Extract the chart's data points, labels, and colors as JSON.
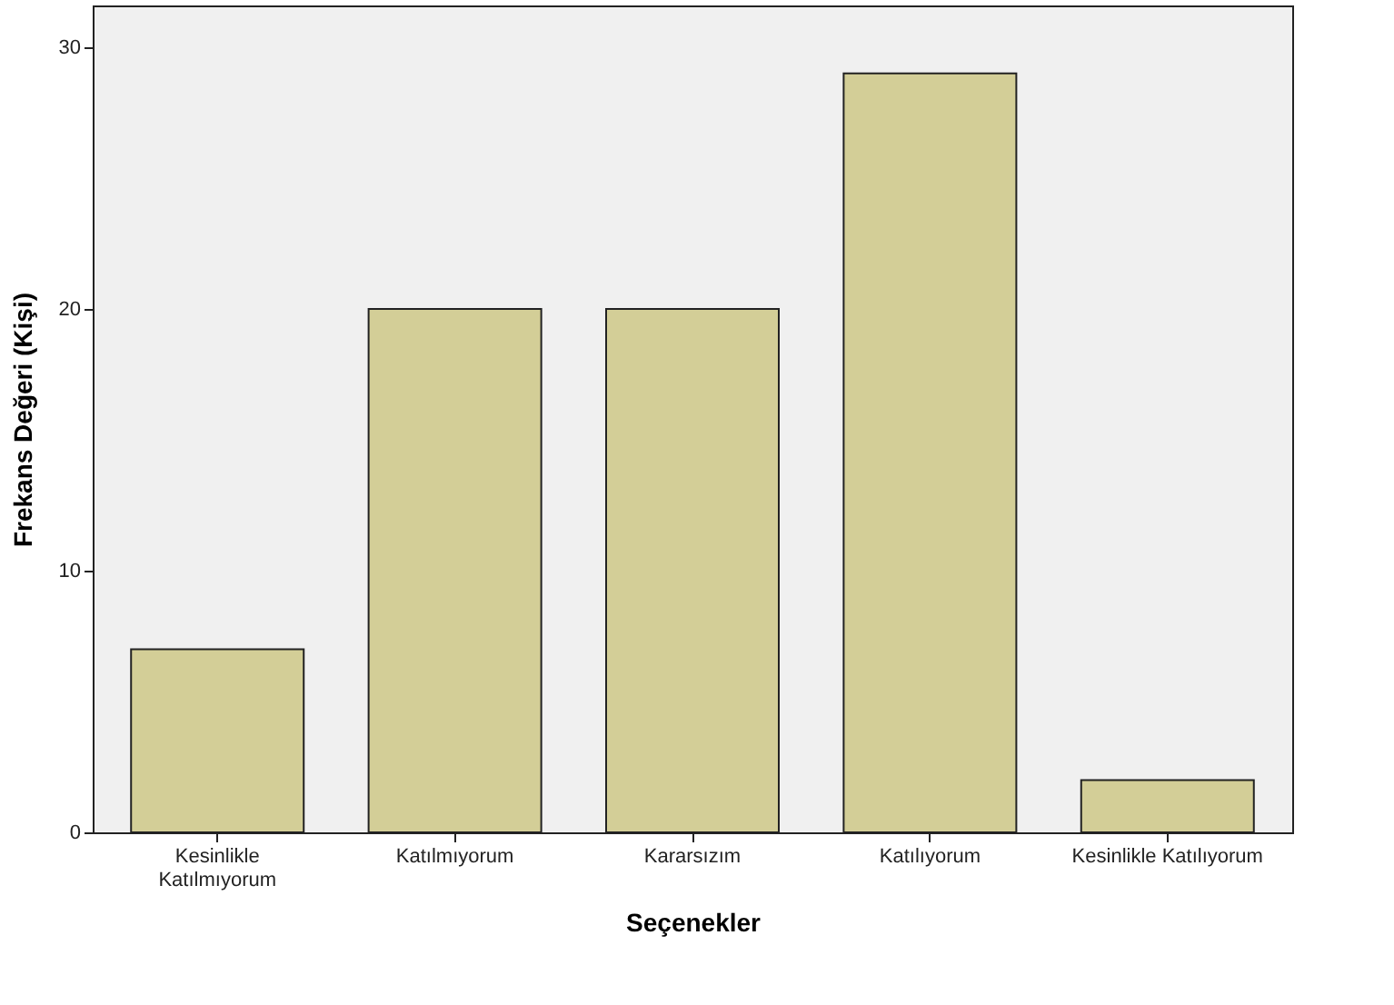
{
  "chart_data": {
    "type": "bar",
    "xlabel": "Seçenekler",
    "ylabel": "Frekans Değeri (Kişi)",
    "categories": [
      "Kesinlikle Katılmıyorum",
      "Katılmıyorum",
      "Kararsızım",
      "Katılıyorum",
      "Kesinlikle Katılıyorum"
    ],
    "values": [
      7,
      20,
      20,
      29,
      2
    ],
    "color": "#d3ce97",
    "ylim": [
      0,
      31.6
    ],
    "yticks": [
      0,
      10,
      20,
      30
    ],
    "grid": false
  }
}
